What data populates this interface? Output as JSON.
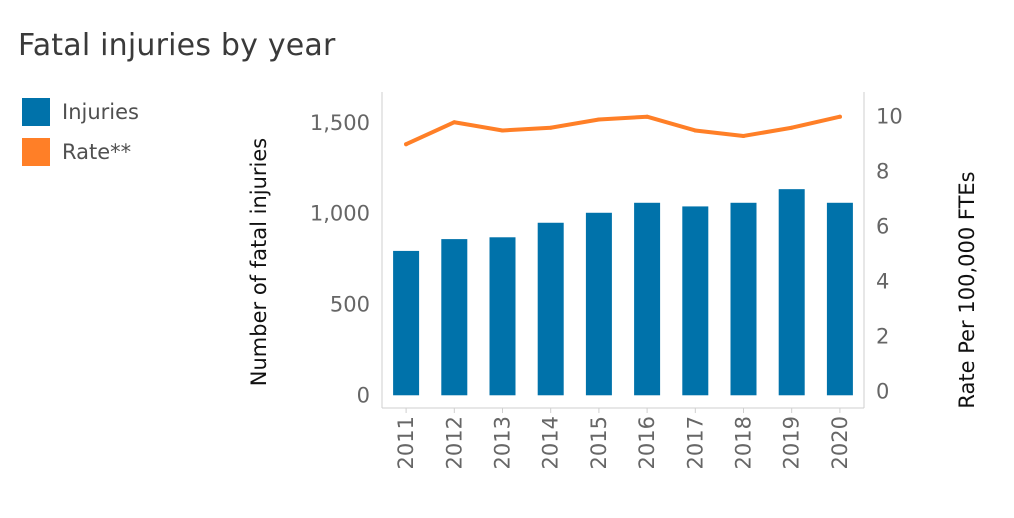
{
  "title": "Fatal injuries by year",
  "legend": [
    {
      "label": "Injuries",
      "color": "#0072aa"
    },
    {
      "label": "Rate**",
      "color": "#ff7f27"
    }
  ],
  "chart_data": {
    "type": "bar",
    "title": "Fatal injuries by year",
    "categories": [
      "2011",
      "2012",
      "2013",
      "2014",
      "2015",
      "2016",
      "2017",
      "2018",
      "2019",
      "2020"
    ],
    "series": [
      {
        "name": "Injuries",
        "type": "bar",
        "axis": "left",
        "color": "#0072aa",
        "values": [
          795,
          860,
          870,
          950,
          1005,
          1060,
          1040,
          1060,
          1135,
          1060
        ]
      },
      {
        "name": "Rate**",
        "type": "line",
        "axis": "right",
        "color": "#ff7f27",
        "values": [
          9.0,
          9.8,
          9.5,
          9.6,
          9.9,
          10.0,
          9.5,
          9.3,
          9.6,
          10.0
        ]
      }
    ],
    "ylabel": "Number of fatal injuries",
    "ylabel_right": "Rate Per 100,000 FTEs",
    "ylim": [
      -70,
      1670
    ],
    "ylim_right": [
      -0.6,
      10.9
    ],
    "yticks": [
      "0",
      "500",
      "1,000",
      "1,500"
    ],
    "yticks_right": [
      "0",
      "2",
      "4",
      "6",
      "8",
      "10"
    ],
    "grid": false,
    "legend_position": "top-left"
  }
}
